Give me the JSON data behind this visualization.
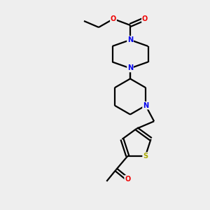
{
  "background_color": "#eeeeee",
  "bond_color": "#000000",
  "N_color": "#0000ee",
  "O_color": "#ee0000",
  "S_color": "#aaaa00",
  "line_width": 1.6,
  "fig_size": [
    3.0,
    3.0
  ],
  "dpi": 100,
  "xlim": [
    0,
    10
  ],
  "ylim": [
    0,
    10
  ]
}
